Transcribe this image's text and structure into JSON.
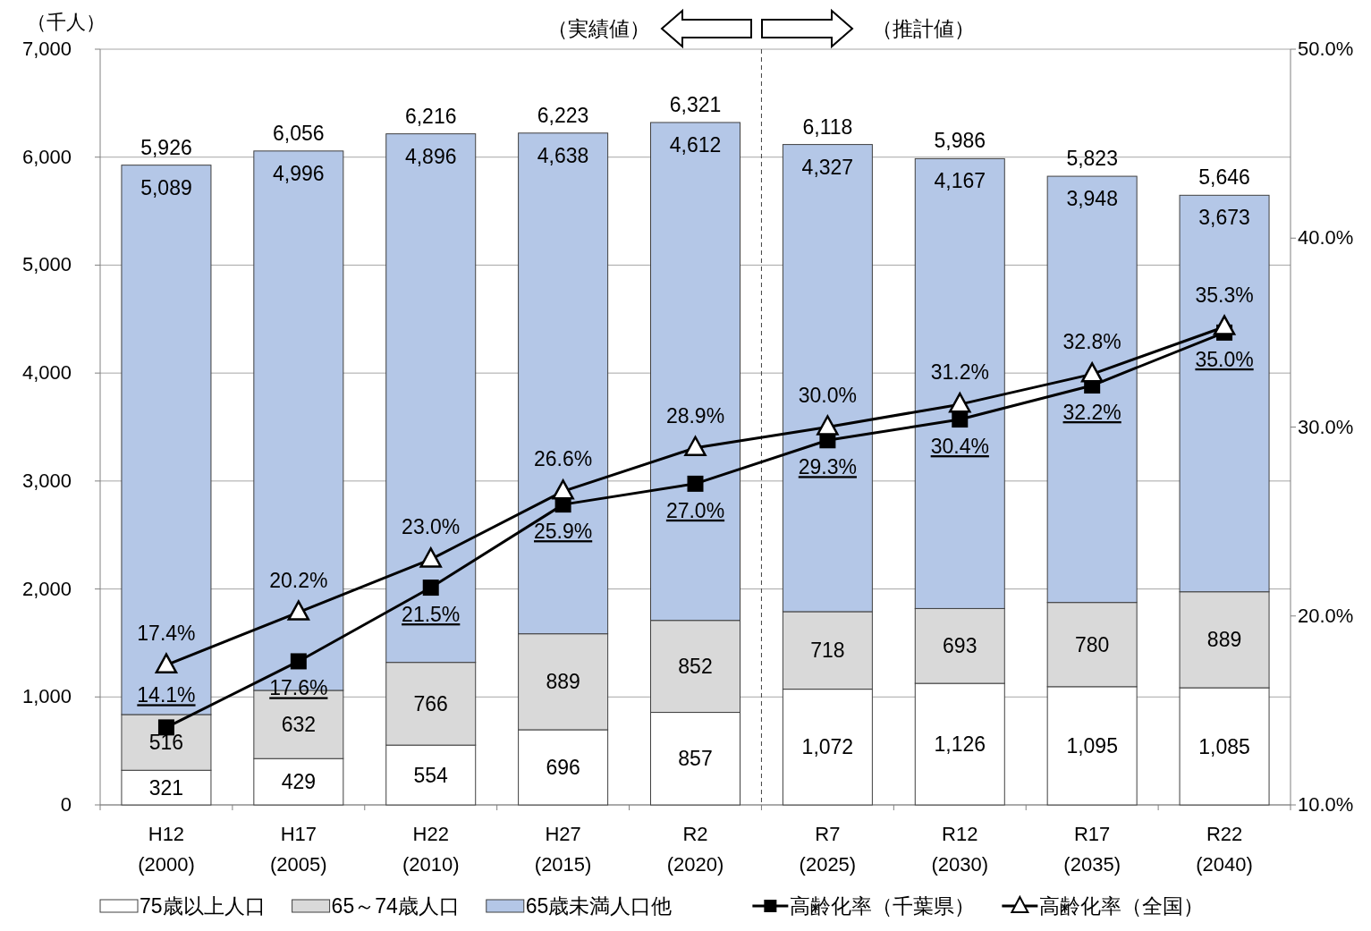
{
  "chart_data": {
    "type": "bar",
    "stacked": true,
    "ylabel": "（千人）",
    "categories": [
      "H12\n(2000)",
      "H17\n(2005)",
      "H22\n(2010)",
      "H27\n(2015)",
      "R2\n(2020)",
      "R7\n(2025)",
      "R12\n(2030)",
      "R17\n(2035)",
      "R22\n(2040)"
    ],
    "series": [
      {
        "name": "75歳以上人口",
        "color": "#ffffff",
        "values": [
          321,
          429,
          554,
          696,
          857,
          1072,
          1126,
          1095,
          1085
        ],
        "value_labels": [
          "321",
          "429",
          "554",
          "696",
          "857",
          "1,072",
          "1,126",
          "1,095",
          "1,085"
        ]
      },
      {
        "name": "65～74歳人口",
        "color": "#d9d9d9",
        "values": [
          516,
          632,
          766,
          889,
          852,
          718,
          693,
          780,
          889
        ],
        "value_labels": [
          "516",
          "632",
          "766",
          "889",
          "852",
          "718",
          "693",
          "780",
          "889"
        ]
      },
      {
        "name": "65歳未満人口他",
        "color": "#b4c7e7",
        "values": [
          5089,
          4996,
          4896,
          4638,
          4612,
          4327,
          4167,
          3948,
          3673
        ],
        "value_labels": [
          "5,089",
          "4,996",
          "4,896",
          "4,638",
          "4,612",
          "4,327",
          "4,167",
          "3,948",
          "3,673"
        ]
      },
      {
        "name": "高齢化率（千葉県）",
        "type": "line",
        "axis": "y2",
        "marker": "square",
        "color": "#000000",
        "values": [
          14.1,
          17.6,
          21.5,
          25.9,
          27.0,
          29.3,
          30.4,
          32.2,
          35.0
        ],
        "value_labels": [
          "14.1%",
          "17.6%",
          "21.5%",
          "25.9%",
          "27.0%",
          "29.3%",
          "30.4%",
          "32.2%",
          "35.0%"
        ]
      },
      {
        "name": "高齢化率（全国）",
        "type": "line",
        "axis": "y2",
        "marker": "triangle",
        "color": "#000000",
        "values": [
          17.4,
          20.2,
          23.0,
          26.6,
          28.9,
          30.0,
          31.2,
          32.8,
          35.3
        ],
        "value_labels": [
          "17.4%",
          "20.2%",
          "23.0%",
          "26.6%",
          "28.9%",
          "30.0%",
          "31.2%",
          "32.8%",
          "35.3%"
        ]
      }
    ],
    "totals": [
      "5,926",
      "6,056",
      "6,216",
      "6,223",
      "6,321",
      "6,118",
      "5,986",
      "5,823",
      "5,646"
    ],
    "ylim": [
      0,
      7000
    ],
    "yticks": [
      0,
      {
        "value": 1000,
        "label": "1,000"
      },
      {
        "value": 2000,
        "label": "2,000"
      },
      {
        "value": 3000,
        "label": "3,000"
      },
      {
        "value": 4000,
        "label": "4,000"
      },
      {
        "value": 5000,
        "label": "5,000"
      },
      {
        "value": 6000,
        "label": "6,000"
      },
      {
        "value": 7000,
        "label": "7,000"
      }
    ],
    "y2lim": [
      10,
      50
    ],
    "y2ticks": [
      {
        "value": 10,
        "label": "10.0%"
      },
      {
        "value": 20,
        "label": "20.0%"
      },
      {
        "value": 30,
        "label": "30.0%"
      },
      {
        "value": 40,
        "label": "40.0%"
      },
      {
        "value": 50,
        "label": "50.0%"
      }
    ],
    "annotations": [
      "（実績値）",
      "（推計値）"
    ],
    "ref_lines": [
      {
        "axis": "x",
        "value": "R7\n(2025)",
        "line_style": "dashed",
        "color": "#404040"
      }
    ],
    "grid": "y",
    "legend": "bottom",
    "line_style": "solid"
  }
}
